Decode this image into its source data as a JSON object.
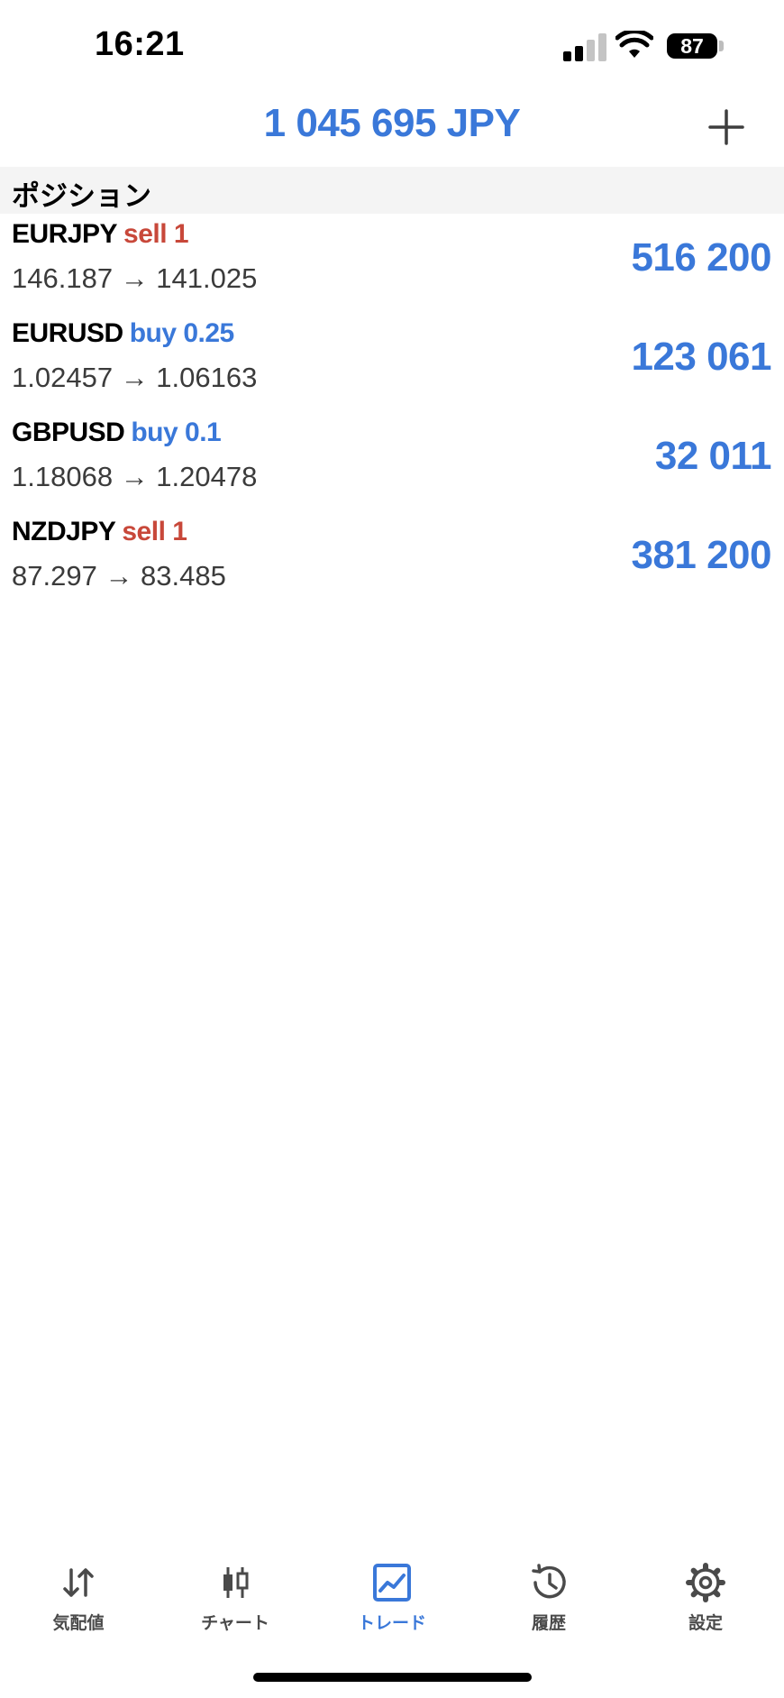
{
  "status_bar": {
    "time": "16:21",
    "battery": "87"
  },
  "header": {
    "balance": "1 045 695 JPY",
    "add_icon": "plus-icon"
  },
  "section": {
    "title": "ポジション"
  },
  "positions": [
    {
      "symbol": "EURJPY",
      "side": "sell 1",
      "direction": "sell",
      "prices": "146.187 → 141.025",
      "profit": "516 200"
    },
    {
      "symbol": "EURUSD",
      "side": "buy 0.25",
      "direction": "buy",
      "prices": "1.02457 → 1.06163",
      "profit": "123 061"
    },
    {
      "symbol": "GBPUSD",
      "side": "buy 0.1",
      "direction": "buy",
      "prices": "1.18068 → 1.20478",
      "profit": "32 011"
    },
    {
      "symbol": "NZDJPY",
      "side": "sell 1",
      "direction": "sell",
      "prices": "87.297 → 83.485",
      "profit": "381 200"
    }
  ],
  "tabs": [
    {
      "label": "気配値",
      "icon": "quotes-arrows-icon",
      "active": false
    },
    {
      "label": "チャート",
      "icon": "candlestick-icon",
      "active": false
    },
    {
      "label": "トレード",
      "icon": "trade-chart-icon",
      "active": true
    },
    {
      "label": "履歴",
      "icon": "history-clock-icon",
      "active": false
    },
    {
      "label": "設定",
      "icon": "settings-gear-icon",
      "active": false
    }
  ],
  "colors": {
    "accent": "#3a78d9",
    "sell": "#c8483a",
    "buy": "#3a78d9",
    "section_bg": "#f4f4f4"
  }
}
